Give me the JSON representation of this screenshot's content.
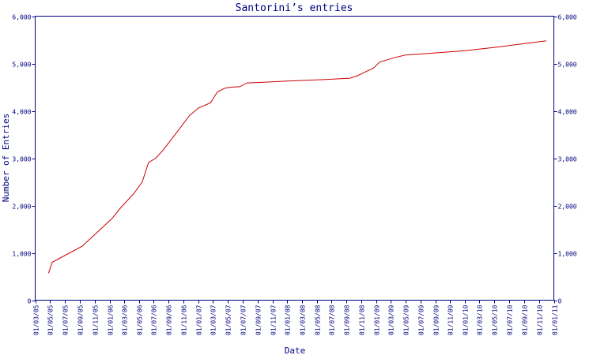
{
  "chart_data": {
    "type": "line",
    "title": "Santorini’s entries",
    "xlabel": "Date",
    "ylabel": "Number of Entries",
    "ylim": [
      0,
      6000
    ],
    "yticks": [
      0,
      1000,
      2000,
      3000,
      4000,
      5000,
      6000
    ],
    "ytick_labels": [
      "0",
      "1,000",
      "2,000",
      "3,000",
      "4,000",
      "5,000",
      "6,000"
    ],
    "right_axis": true,
    "grid": false,
    "legend": "none",
    "xlim": [
      "2005-03-01",
      "2011-01-01"
    ],
    "xtick_labels": [
      "01/03/05",
      "01/05/05",
      "01/07/05",
      "01/09/05",
      "01/11/05",
      "01/01/06",
      "01/03/06",
      "01/05/06",
      "01/07/06",
      "01/09/06",
      "01/11/06",
      "01/01/07",
      "01/03/07",
      "01/05/07",
      "01/07/07",
      "01/09/07",
      "01/11/07",
      "01/01/08",
      "01/03/08",
      "01/05/08",
      "01/07/08",
      "01/09/08",
      "01/11/08",
      "01/01/09",
      "01/03/09",
      "01/05/09",
      "01/07/09",
      "01/09/09",
      "01/11/09",
      "01/01/10",
      "01/03/10",
      "01/05/10",
      "01/07/10",
      "01/09/10",
      "01/11/10",
      "01/01/11"
    ],
    "series": [
      {
        "color": "#cc0000",
        "points": [
          [
            "2005-04-25",
            570
          ],
          [
            "2005-05-10",
            800
          ],
          [
            "2005-06-15",
            900
          ],
          [
            "2005-09-10",
            1140
          ],
          [
            "2005-10-20",
            1330
          ],
          [
            "2006-01-10",
            1720
          ],
          [
            "2006-02-15",
            1950
          ],
          [
            "2006-04-10",
            2250
          ],
          [
            "2006-05-15",
            2500
          ],
          [
            "2006-06-10",
            2910
          ],
          [
            "2006-07-10",
            3000
          ],
          [
            "2006-08-10",
            3180
          ],
          [
            "2006-10-15",
            3620
          ],
          [
            "2006-11-25",
            3900
          ],
          [
            "2007-01-01",
            4060
          ],
          [
            "2007-02-20",
            4170
          ],
          [
            "2007-03-20",
            4400
          ],
          [
            "2007-04-20",
            4480
          ],
          [
            "2007-05-15",
            4500
          ],
          [
            "2007-06-20",
            4510
          ],
          [
            "2007-07-20",
            4590
          ],
          [
            "2007-09-10",
            4600
          ],
          [
            "2008-01-01",
            4630
          ],
          [
            "2008-06-01",
            4660
          ],
          [
            "2008-09-15",
            4690
          ],
          [
            "2008-10-15",
            4740
          ],
          [
            "2008-11-20",
            4830
          ],
          [
            "2008-12-20",
            4900
          ],
          [
            "2009-01-15",
            5030
          ],
          [
            "2009-03-15",
            5120
          ],
          [
            "2009-05-01",
            5180
          ],
          [
            "2009-07-01",
            5200
          ],
          [
            "2010-01-01",
            5270
          ],
          [
            "2010-05-01",
            5340
          ],
          [
            "2010-09-01",
            5420
          ],
          [
            "2010-12-01",
            5480
          ]
        ]
      }
    ]
  }
}
